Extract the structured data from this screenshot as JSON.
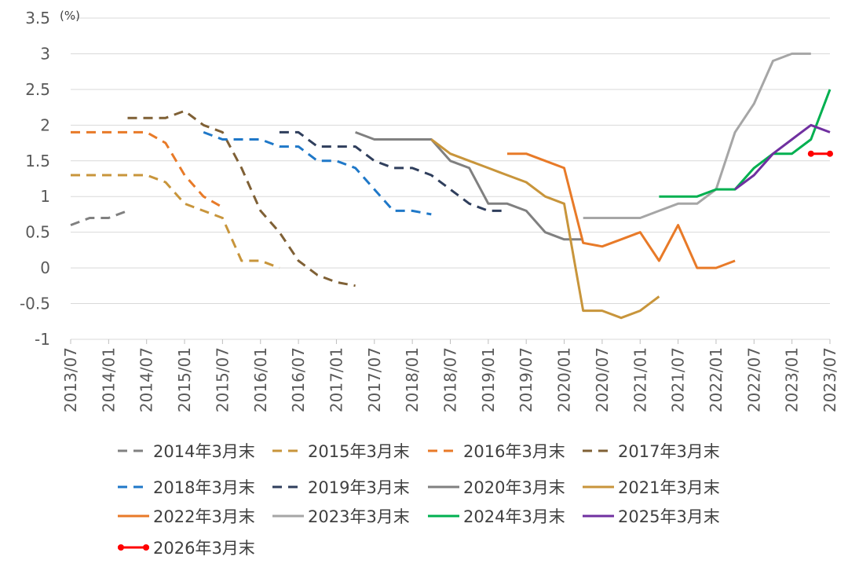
{
  "chart_data": {
    "type": "line",
    "unit_label": "(%)",
    "ylim": [
      -1,
      3.5
    ],
    "yticks": [
      "3.5",
      "3",
      "2.5",
      "2",
      "1.5",
      "1",
      "0.5",
      "0",
      "-0.5",
      "-1"
    ],
    "xticks": [
      "2013/07",
      "2014/01",
      "2014/07",
      "2015/01",
      "2015/07",
      "2016/01",
      "2016/07",
      "2017/01",
      "2017/07",
      "2018/01",
      "2018/07",
      "2019/01",
      "2019/07",
      "2020/01",
      "2020/07",
      "2021/01",
      "2021/07",
      "2022/01",
      "2022/07",
      "2023/01",
      "2023/07"
    ],
    "grid": true,
    "legend_position": "bottom",
    "series": [
      {
        "name": "2014年3月末",
        "color": "#808080",
        "dash": true,
        "marker": false,
        "points": [
          [
            0,
            0.6
          ],
          [
            1,
            0.7
          ],
          [
            2,
            0.7
          ],
          [
            3,
            0.8
          ]
        ]
      },
      {
        "name": "2015年3月末",
        "color": "#C8953B",
        "dash": true,
        "marker": false,
        "points": [
          [
            0,
            1.3
          ],
          [
            2,
            1.3
          ],
          [
            4,
            1.3
          ],
          [
            5,
            1.2
          ],
          [
            6,
            0.9
          ],
          [
            7,
            0.8
          ],
          [
            8,
            0.7
          ],
          [
            9,
            0.1
          ],
          [
            10,
            0.1
          ],
          [
            11,
            0.0
          ]
        ]
      },
      {
        "name": "2016年3月末",
        "color": "#E87A28",
        "dash": true,
        "marker": false,
        "points": [
          [
            0,
            1.9
          ],
          [
            2,
            1.9
          ],
          [
            4,
            1.9
          ],
          [
            5,
            1.75
          ],
          [
            6,
            1.3
          ],
          [
            7,
            1.0
          ],
          [
            8,
            0.85
          ]
        ]
      },
      {
        "name": "2017年3月末",
        "color": "#7F6035",
        "dash": true,
        "marker": false,
        "points": [
          [
            3,
            2.1
          ],
          [
            4,
            2.1
          ],
          [
            5,
            2.1
          ],
          [
            6,
            2.2
          ],
          [
            7,
            2.0
          ],
          [
            8,
            1.9
          ],
          [
            9,
            1.4
          ],
          [
            10,
            0.8
          ],
          [
            11,
            0.5
          ],
          [
            12,
            0.1
          ],
          [
            13,
            -0.1
          ],
          [
            14,
            -0.2
          ],
          [
            15,
            -0.25
          ]
        ]
      },
      {
        "name": "2018年3月末",
        "color": "#1F78C8",
        "dash": true,
        "marker": false,
        "points": [
          [
            7,
            1.9
          ],
          [
            8,
            1.8
          ],
          [
            9,
            1.8
          ],
          [
            10,
            1.8
          ],
          [
            11,
            1.7
          ],
          [
            12,
            1.7
          ],
          [
            13,
            1.5
          ],
          [
            14,
            1.5
          ],
          [
            15,
            1.4
          ],
          [
            16,
            1.1
          ],
          [
            17,
            0.8
          ],
          [
            18,
            0.8
          ],
          [
            19,
            0.75
          ]
        ]
      },
      {
        "name": "2019年3月末",
        "color": "#2F3E5C",
        "dash": true,
        "marker": false,
        "points": [
          [
            11,
            1.9
          ],
          [
            12,
            1.9
          ],
          [
            13,
            1.7
          ],
          [
            14,
            1.7
          ],
          [
            15,
            1.7
          ],
          [
            16,
            1.5
          ],
          [
            17,
            1.4
          ],
          [
            18,
            1.4
          ],
          [
            19,
            1.3
          ],
          [
            20,
            1.1
          ],
          [
            21,
            0.9
          ],
          [
            22,
            0.8
          ],
          [
            23,
            0.8
          ]
        ]
      },
      {
        "name": "2020年3月末",
        "color": "#808080",
        "dash": false,
        "marker": false,
        "points": [
          [
            15,
            1.9
          ],
          [
            16,
            1.8
          ],
          [
            17,
            1.8
          ],
          [
            18,
            1.8
          ],
          [
            19,
            1.8
          ],
          [
            20,
            1.5
          ],
          [
            21,
            1.4
          ],
          [
            22,
            0.9
          ],
          [
            23,
            0.9
          ],
          [
            24,
            0.8
          ],
          [
            25,
            0.5
          ],
          [
            26,
            0.4
          ],
          [
            27,
            0.4
          ]
        ]
      },
      {
        "name": "2021年3月末",
        "color": "#C8953B",
        "dash": false,
        "marker": false,
        "points": [
          [
            19,
            1.8
          ],
          [
            20,
            1.6
          ],
          [
            21,
            1.5
          ],
          [
            22,
            1.4
          ],
          [
            23,
            1.3
          ],
          [
            24,
            1.2
          ],
          [
            25,
            1.0
          ],
          [
            26,
            0.9
          ],
          [
            27,
            -0.6
          ],
          [
            28,
            -0.6
          ],
          [
            29,
            -0.7
          ],
          [
            30,
            -0.6
          ],
          [
            31,
            -0.4
          ]
        ]
      },
      {
        "name": "2022年3月末",
        "color": "#E87A28",
        "dash": false,
        "marker": false,
        "points": [
          [
            23,
            1.6
          ],
          [
            24,
            1.6
          ],
          [
            25,
            1.5
          ],
          [
            26,
            1.4
          ],
          [
            27,
            0.35
          ],
          [
            28,
            0.3
          ],
          [
            29,
            0.4
          ],
          [
            30,
            0.5
          ],
          [
            31,
            0.1
          ],
          [
            32,
            0.6
          ],
          [
            33,
            0.0
          ],
          [
            34,
            0.0
          ],
          [
            35,
            0.1
          ]
        ]
      },
      {
        "name": "2023年3月末",
        "color": "#A6A6A6",
        "dash": false,
        "marker": false,
        "points": [
          [
            27,
            0.7
          ],
          [
            28,
            0.7
          ],
          [
            29,
            0.7
          ],
          [
            30,
            0.7
          ],
          [
            31,
            0.8
          ],
          [
            32,
            0.9
          ],
          [
            33,
            0.9
          ],
          [
            34,
            1.1
          ],
          [
            35,
            1.9
          ],
          [
            36,
            2.3
          ],
          [
            37,
            2.9
          ],
          [
            38,
            3.0
          ],
          [
            39,
            3.0
          ]
        ]
      },
      {
        "name": "2024年3月末",
        "color": "#00B050",
        "dash": false,
        "marker": false,
        "points": [
          [
            31,
            1.0
          ],
          [
            32,
            1.0
          ],
          [
            33,
            1.0
          ],
          [
            34,
            1.1
          ],
          [
            35,
            1.1
          ],
          [
            36,
            1.4
          ],
          [
            37,
            1.6
          ],
          [
            38,
            1.6
          ],
          [
            39,
            1.8
          ],
          [
            40,
            2.5
          ]
        ]
      },
      {
        "name": "2025年3月末",
        "color": "#7030A0",
        "dash": false,
        "marker": false,
        "points": [
          [
            35,
            1.1
          ],
          [
            36,
            1.3
          ],
          [
            37,
            1.6
          ],
          [
            38,
            1.8
          ],
          [
            39,
            2.0
          ],
          [
            40,
            1.9
          ]
        ]
      },
      {
        "name": "2026年3月末",
        "color": "#FF0000",
        "dash": false,
        "marker": true,
        "points": [
          [
            39,
            1.6
          ],
          [
            40,
            1.6
          ]
        ]
      }
    ]
  }
}
